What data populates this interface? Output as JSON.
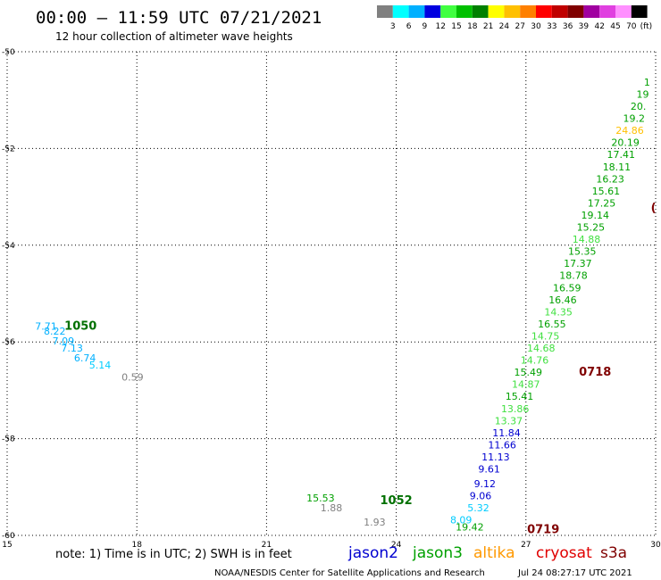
{
  "header": {
    "title": "00:00 – 11:59 UTC 07/21/2021",
    "subtitle": "12 hour collection of altimeter wave heights"
  },
  "legend": {
    "unit": "(ft)",
    "bins": [
      {
        "label": "3",
        "color": "#808080"
      },
      {
        "label": "6",
        "color": "#00ffff"
      },
      {
        "label": "9",
        "color": "#00b0ff"
      },
      {
        "label": "12",
        "color": "#0000e0"
      },
      {
        "label": "15",
        "color": "#40ff40"
      },
      {
        "label": "18",
        "color": "#00c000"
      },
      {
        "label": "21",
        "color": "#008000"
      },
      {
        "label": "24",
        "color": "#ffff00"
      },
      {
        "label": "27",
        "color": "#ffc000"
      },
      {
        "label": "30",
        "color": "#ff8000"
      },
      {
        "label": "33",
        "color": "#ff0000"
      },
      {
        "label": "36",
        "color": "#c00000"
      },
      {
        "label": "39",
        "color": "#800000"
      },
      {
        "label": "42",
        "color": "#a000a0"
      },
      {
        "label": "45",
        "color": "#e040e0"
      },
      {
        "label": "70",
        "color": "#ff90ff"
      },
      {
        "label": "",
        "color": "#000000"
      }
    ]
  },
  "footer": {
    "note": "note:  1) Time is in UTC;  2) SWH is in feet",
    "satellites": [
      {
        "name": "jason2",
        "color": "#0000d0"
      },
      {
        "name": "jason3",
        "color": "#00a000"
      },
      {
        "name": "altika",
        "color": "#ff9900"
      },
      {
        "name": "cryosat",
        "color": "#e00000"
      },
      {
        "name": "s3a",
        "color": "#800000"
      }
    ],
    "credit": "NOAA/NESDIS Center for Satellite Applications and Research",
    "timestamp": "Jul 24 08:27:17 UTC 2021"
  },
  "chart_data": {
    "type": "scatter",
    "x_ticks": [
      "15",
      "18",
      "21",
      "24",
      "27",
      "30"
    ],
    "y_ticks": [
      "-50",
      "-52",
      "-54",
      "-56",
      "-58",
      "-60"
    ],
    "xlim": [
      15,
      30
    ],
    "ylim": [
      -60,
      -50
    ],
    "grid": true,
    "points": [
      {
        "x": 15.9,
        "y": -55.75,
        "v": "7.71",
        "c": "#00b0ff"
      },
      {
        "x": 16.1,
        "y": -55.85,
        "v": "8.22",
        "c": "#00b0ff"
      },
      {
        "x": 16.3,
        "y": -56.05,
        "v": "7.09",
        "c": "#00b0ff"
      },
      {
        "x": 16.5,
        "y": -56.2,
        "v": "7.13",
        "c": "#00b0ff"
      },
      {
        "x": 16.8,
        "y": -56.4,
        "v": "6.74",
        "c": "#00b0ff"
      },
      {
        "x": 17.15,
        "y": -56.55,
        "v": "5.14",
        "c": "#00ccff"
      },
      {
        "x": 17.9,
        "y": -56.8,
        "v": "0.59",
        "c": "#808080"
      },
      {
        "x": 22.25,
        "y": -59.3,
        "v": "15.53",
        "c": "#00a000"
      },
      {
        "x": 22.5,
        "y": -59.5,
        "v": "1.88",
        "c": "#808080"
      },
      {
        "x": 23.5,
        "y": -59.8,
        "v": "1.93",
        "c": "#808080"
      },
      {
        "x": 25.7,
        "y": -59.9,
        "v": "19.42",
        "c": "#00a000"
      },
      {
        "x": 25.5,
        "y": -59.75,
        "v": "8.09",
        "c": "#00ccff"
      },
      {
        "x": 25.9,
        "y": -59.5,
        "v": "5.32",
        "c": "#00ccff"
      },
      {
        "x": 25.95,
        "y": -59.25,
        "v": "9.06",
        "c": "#0000d0"
      },
      {
        "x": 26.05,
        "y": -59.0,
        "v": "9.12",
        "c": "#0000d0"
      },
      {
        "x": 26.15,
        "y": -58.7,
        "v": "9.61",
        "c": "#0000d0"
      },
      {
        "x": 26.3,
        "y": -58.45,
        "v": "11.13",
        "c": "#0000d0"
      },
      {
        "x": 26.45,
        "y": -58.2,
        "v": "11.66",
        "c": "#0000d0"
      },
      {
        "x": 26.55,
        "y": -57.95,
        "v": "11.84",
        "c": "#0000d0"
      },
      {
        "x": 26.6,
        "y": -57.7,
        "v": "13.37",
        "c": "#40e040"
      },
      {
        "x": 26.75,
        "y": -57.45,
        "v": "13.86",
        "c": "#40e040"
      },
      {
        "x": 26.85,
        "y": -57.2,
        "v": "15.41",
        "c": "#00a000"
      },
      {
        "x": 27.0,
        "y": -56.95,
        "v": "14.87",
        "c": "#40e040"
      },
      {
        "x": 27.05,
        "y": -56.7,
        "v": "15.49",
        "c": "#00a000"
      },
      {
        "x": 27.2,
        "y": -56.45,
        "v": "14.76",
        "c": "#40e040"
      },
      {
        "x": 27.35,
        "y": -56.2,
        "v": "14.68",
        "c": "#40e040"
      },
      {
        "x": 27.45,
        "y": -55.95,
        "v": "14.75",
        "c": "#40e040"
      },
      {
        "x": 27.6,
        "y": -55.7,
        "v": "16.55",
        "c": "#00a000"
      },
      {
        "x": 27.75,
        "y": -55.45,
        "v": "14.35",
        "c": "#40e040"
      },
      {
        "x": 27.85,
        "y": -55.2,
        "v": "16.46",
        "c": "#00a000"
      },
      {
        "x": 27.95,
        "y": -54.95,
        "v": "16.59",
        "c": "#00a000"
      },
      {
        "x": 28.1,
        "y": -54.7,
        "v": "18.78",
        "c": "#00a000"
      },
      {
        "x": 28.2,
        "y": -54.45,
        "v": "17.37",
        "c": "#00a000"
      },
      {
        "x": 28.3,
        "y": -54.2,
        "v": "15.35",
        "c": "#00a000"
      },
      {
        "x": 28.4,
        "y": -53.95,
        "v": "14.88",
        "c": "#40e040"
      },
      {
        "x": 28.5,
        "y": -53.7,
        "v": "15.25",
        "c": "#00a000"
      },
      {
        "x": 28.6,
        "y": -53.45,
        "v": "19.14",
        "c": "#00a000"
      },
      {
        "x": 28.75,
        "y": -53.2,
        "v": "17.25",
        "c": "#00a000"
      },
      {
        "x": 28.85,
        "y": -52.95,
        "v": "15.61",
        "c": "#00a000"
      },
      {
        "x": 28.95,
        "y": -52.7,
        "v": "16.23",
        "c": "#00a000"
      },
      {
        "x": 29.1,
        "y": -52.45,
        "v": "18.11",
        "c": "#00a000"
      },
      {
        "x": 29.2,
        "y": -52.2,
        "v": "17.41",
        "c": "#00a000"
      },
      {
        "x": 29.3,
        "y": -51.95,
        "v": "20.19",
        "c": "#00a000"
      },
      {
        "x": 29.4,
        "y": -51.7,
        "v": "24.86",
        "c": "#ffc000"
      },
      {
        "x": 29.5,
        "y": -51.45,
        "v": "19.2",
        "c": "#00a000"
      },
      {
        "x": 29.6,
        "y": -51.2,
        "v": "20.",
        "c": "#00a000"
      },
      {
        "x": 29.7,
        "y": -50.95,
        "v": "19",
        "c": "#00a000"
      },
      {
        "x": 29.8,
        "y": -50.7,
        "v": "1",
        "c": "#00a000"
      }
    ],
    "track_labels": [
      {
        "x": 16.7,
        "y": -55.75,
        "v": "1050",
        "c": "#007000"
      },
      {
        "x": 24.0,
        "y": -59.35,
        "v": "1052",
        "c": "#007000"
      },
      {
        "x": 27.4,
        "y": -59.95,
        "v": "0719",
        "c": "#800000"
      },
      {
        "x": 28.6,
        "y": -56.7,
        "v": "0718",
        "c": "#800000"
      },
      {
        "x": 29.95,
        "y": -53.3,
        "v": "(",
        "c": "#800000"
      }
    ]
  }
}
